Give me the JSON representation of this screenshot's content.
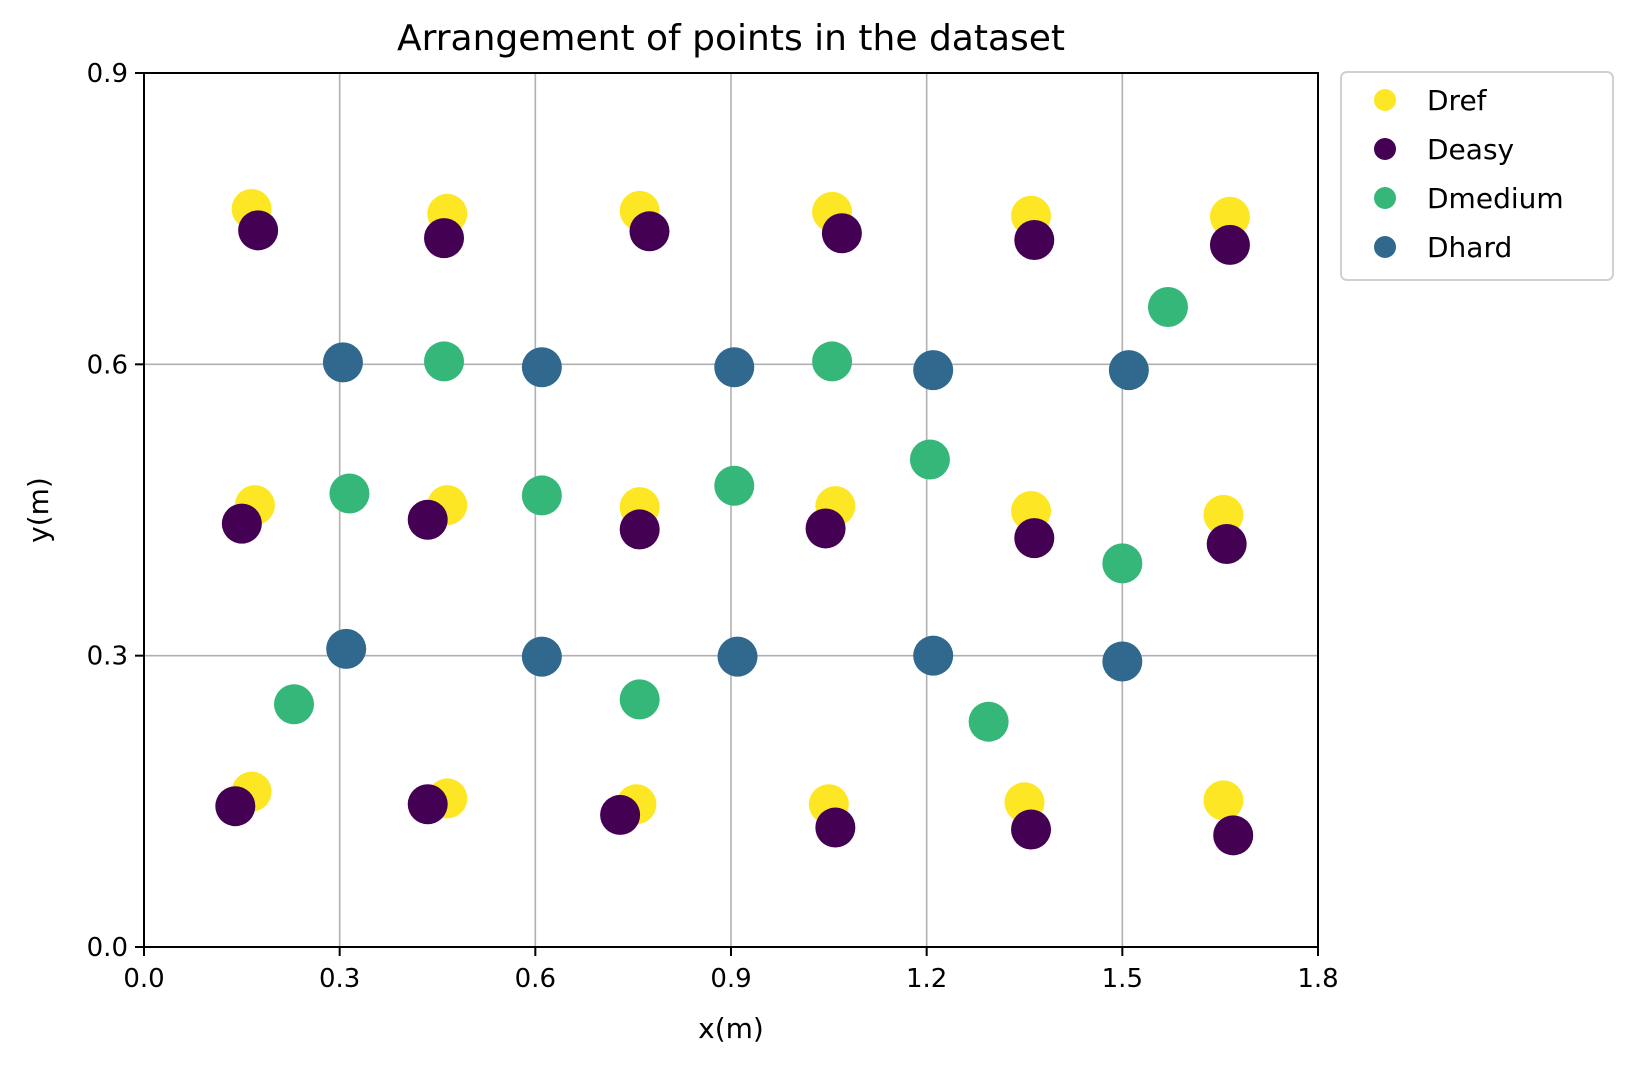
{
  "chart_data": {
    "type": "scatter",
    "title": "Arrangement of points in the dataset",
    "xlabel": "x(m)",
    "ylabel": "y(m)",
    "xlim": [
      0.0,
      1.8
    ],
    "ylim": [
      0.0,
      0.9
    ],
    "xticks": [
      "0.0",
      "0.3",
      "0.6",
      "0.9",
      "1.2",
      "1.5",
      "1.8"
    ],
    "yticks": [
      "0.0",
      "0.3",
      "0.6",
      "0.9"
    ],
    "grid": true,
    "legend_position": "outside-top-right",
    "series": [
      {
        "name": "Dref",
        "color": "#fde725",
        "points": [
          [
            0.165,
            0.76
          ],
          [
            0.465,
            0.755
          ],
          [
            0.76,
            0.758
          ],
          [
            1.055,
            0.757
          ],
          [
            1.36,
            0.753
          ],
          [
            1.665,
            0.752
          ],
          [
            0.17,
            0.455
          ],
          [
            0.465,
            0.455
          ],
          [
            0.76,
            0.453
          ],
          [
            1.06,
            0.454
          ],
          [
            1.36,
            0.449
          ],
          [
            1.655,
            0.445
          ],
          [
            0.165,
            0.16
          ],
          [
            0.465,
            0.153
          ],
          [
            0.755,
            0.147
          ],
          [
            1.05,
            0.147
          ],
          [
            1.35,
            0.149
          ],
          [
            1.655,
            0.151
          ]
        ]
      },
      {
        "name": "Deasy",
        "color": "#440154",
        "points": [
          [
            0.175,
            0.738
          ],
          [
            0.46,
            0.73
          ],
          [
            0.775,
            0.737
          ],
          [
            1.07,
            0.735
          ],
          [
            1.365,
            0.728
          ],
          [
            1.665,
            0.723
          ],
          [
            0.15,
            0.436
          ],
          [
            0.435,
            0.44
          ],
          [
            0.76,
            0.43
          ],
          [
            1.045,
            0.431
          ],
          [
            1.365,
            0.421
          ],
          [
            1.66,
            0.415
          ],
          [
            0.14,
            0.145
          ],
          [
            0.435,
            0.147
          ],
          [
            0.73,
            0.136
          ],
          [
            1.06,
            0.123
          ],
          [
            1.36,
            0.121
          ],
          [
            1.67,
            0.115
          ]
        ]
      },
      {
        "name": "Dmedium",
        "color": "#35b779",
        "points": [
          [
            0.46,
            0.603
          ],
          [
            1.055,
            0.603
          ],
          [
            1.57,
            0.659
          ],
          [
            0.315,
            0.467
          ],
          [
            0.61,
            0.465
          ],
          [
            0.905,
            0.475
          ],
          [
            1.205,
            0.502
          ],
          [
            1.5,
            0.395
          ],
          [
            0.23,
            0.25
          ],
          [
            0.76,
            0.255
          ],
          [
            1.295,
            0.232
          ]
        ]
      },
      {
        "name": "Dhard",
        "color": "#31688e",
        "points": [
          [
            0.305,
            0.602
          ],
          [
            0.61,
            0.597
          ],
          [
            0.905,
            0.597
          ],
          [
            1.21,
            0.594
          ],
          [
            1.51,
            0.594
          ],
          [
            0.31,
            0.307
          ],
          [
            0.61,
            0.299
          ],
          [
            0.91,
            0.299
          ],
          [
            1.21,
            0.3
          ],
          [
            1.5,
            0.294
          ]
        ]
      }
    ]
  }
}
